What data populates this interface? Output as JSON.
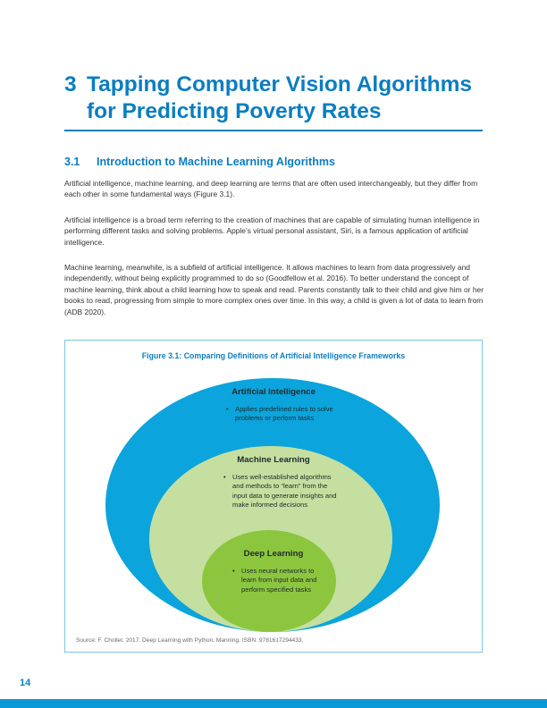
{
  "chapter": {
    "number": "3",
    "title_line1": "Tapping Computer Vision Algorithms",
    "title_line2": "for Predicting Poverty Rates"
  },
  "section": {
    "number": "3.1",
    "title": "Introduction to Machine Learning Algorithms"
  },
  "paragraphs": [
    "Artificial intelligence, machine learning, and deep learning are terms that are often used interchangeably, but they differ from each other in some fundamental ways (Figure 3.1).",
    "Artificial intelligence is a broad term referring to the creation of machines that are capable of simulating human intelligence in performing different tasks and solving problems. Apple’s virtual personal assistant, Siri, is a famous application of artificial intelligence.",
    "Machine learning, meanwhile, is a subfield of artificial intelligence. It allows machines to learn from data progressively and independently, without being explicitly programmed to do so (Goodfellow et al. 2016). To better understand the concept of machine learning, think about a child learning how to speak and read. Parents constantly talk to their child and give him or her books to read, progressing from simple to more complex ones over time. In this way, a child is given a lot of data to learn from (ADB 2020)."
  ],
  "figure": {
    "caption": "Figure 3.1: Comparing Definitions of Artificial Intelligence Frameworks",
    "colors": {
      "outer": "#0ba4dc",
      "middle": "#c5dfa0",
      "inner": "#8cc63f"
    },
    "ellipses": [
      {
        "heading": "Artificial Intelligence",
        "bullets": [
          "Applies predefined rules to solve problems or perform tasks"
        ]
      },
      {
        "heading": "Machine Learning",
        "bullets": [
          "Uses well-established algorithms and methods to “learn” from the input data to generate insights and make informed decisions"
        ]
      },
      {
        "heading": "Deep Learning",
        "bullets": [
          "Uses neural networks to learn from input data and perform specified tasks"
        ]
      }
    ],
    "source": "Source: F. Chollet. 2017. Deep Learning with Python. Manning. ISBN: 9781617294433."
  },
  "page_number": "14"
}
